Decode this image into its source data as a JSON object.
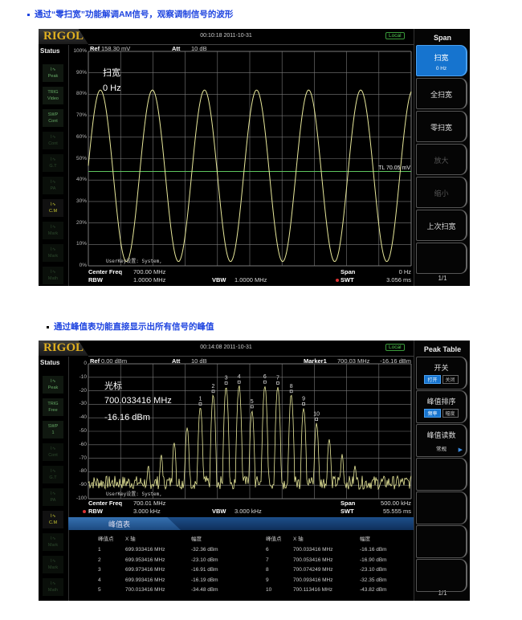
{
  "headings": [
    "通过“零扫宽”功能解调AM信号，观察调制信号的波形",
    "通过峰值表功能直接显示出所有信号的峰值"
  ],
  "colors": {
    "trace": "#e8e89a",
    "grid": "#7a7a7a",
    "threshold_line": "#5ec45e",
    "active_menu": "#1674cf",
    "heading": "#1f45e0"
  },
  "screen1": {
    "logo": "RIGOL",
    "time": "00:10:18 2011-10-31",
    "local": "Local",
    "status_title": "Status",
    "status_items": [
      [
        "",
        "Peak",
        "normal"
      ],
      [
        "TRIG",
        "Video",
        "normal"
      ],
      [
        "SWP",
        "Cont",
        "normal"
      ],
      [
        "",
        "Cont",
        "dim"
      ],
      [
        "",
        "G.T",
        "dim"
      ],
      [
        "",
        "PA",
        "dim"
      ],
      [
        "",
        "C.M",
        "bright"
      ],
      [
        "",
        "Mark",
        "dim"
      ],
      [
        "",
        "Mark",
        "dim"
      ],
      [
        "",
        "Math",
        "dim"
      ]
    ],
    "ref_label": "Ref",
    "ref_value": "158.30 mV",
    "att_label": "Att",
    "att_value": "10 dB",
    "y_ticks": [
      "100%",
      "90%",
      "80%",
      "70%",
      "60%",
      "50%",
      "40%",
      "30%",
      "20%",
      "10%",
      "0%"
    ],
    "overlay": [
      "扫宽",
      "0 Hz"
    ],
    "threshold_label": "TL 70.05 mV",
    "threshold_percent": 44,
    "userkey": "UserKey设置:   System,",
    "trace": {
      "type": "sine",
      "peak_percent": 82,
      "trough_percent": 2,
      "periods_shown": 6.2
    },
    "footer": {
      "center_freq_label": "Center Freq",
      "center_freq": "700.00 MHz",
      "span_label": "Span",
      "span": "0 Hz",
      "rbw_label": "RBW",
      "rbw": "1.0000 MHz",
      "vbw_label": "VBW",
      "vbw": "1.0000 MHz",
      "swt_label": "SWT",
      "swt": "3.056 ms"
    },
    "menu": {
      "title": "Span",
      "items": [
        {
          "label": "扫宽",
          "sub": "0 Hz",
          "state": "active"
        },
        {
          "label": "全扫宽",
          "state": "normal"
        },
        {
          "label": "零扫宽",
          "state": "normal"
        },
        {
          "label": "放大",
          "state": "disabled"
        },
        {
          "label": "缩小",
          "state": "disabled"
        },
        {
          "label": "上次扫宽",
          "state": "normal"
        },
        {
          "label": "",
          "state": "normal"
        }
      ],
      "page": "1/1"
    }
  },
  "screen2": {
    "logo": "RIGOL",
    "time": "00:14:08 2011-10-31",
    "local": "Local",
    "status_title": "Status",
    "status_items": [
      [
        "",
        "Peak",
        "normal"
      ],
      [
        "TRIG",
        "Free",
        "normal"
      ],
      [
        "SWP",
        "1",
        "normal"
      ],
      [
        "",
        "Cont",
        "dim"
      ],
      [
        "",
        "G.T",
        "dim"
      ],
      [
        "",
        "PA",
        "dim"
      ],
      [
        "",
        "C.M",
        "bright"
      ],
      [
        "",
        "Mark",
        "dim"
      ],
      [
        "",
        "Mark",
        "dim"
      ],
      [
        "",
        "Math",
        "dim"
      ]
    ],
    "ref_label": "Ref",
    "ref_value": "0.00 dBm",
    "att_label": "Att",
    "att_value": "10 dB",
    "marker_label": "Marker1",
    "marker_freq": "700.03 MHz",
    "marker_amp": "-16.16 dBm",
    "y_ticks": [
      "0",
      "-10",
      "-20",
      "-30",
      "-40",
      "-50",
      "-60",
      "-70",
      "-80",
      "-90",
      "-100"
    ],
    "overlay": [
      "光标",
      "700.033416 MHz",
      "-16.16 dBm"
    ],
    "userkey": "UserKey设置:   System,",
    "x_range_mhz": [
      699.76,
      700.26
    ],
    "footer": {
      "center_freq_label": "Center Freq",
      "center_freq": "700.01 MHz",
      "span_label": "Span",
      "span": "500.00 kHz",
      "rbw_label": "RBW",
      "rbw": "3.000 kHz",
      "vbw_label": "VBW",
      "vbw": "3.000 kHz",
      "swt_label": "SWT",
      "swt": "55.555 ms"
    },
    "peak_table": {
      "title": "峰值表",
      "headers": [
        "峰值点",
        "X 轴",
        "幅度"
      ],
      "rows": [
        [
          "1",
          "699.933416 MHz",
          "-32.36 dBm"
        ],
        [
          "2",
          "699.953416 MHz",
          "-23.10 dBm"
        ],
        [
          "3",
          "699.973416 MHz",
          "-16.91 dBm"
        ],
        [
          "4",
          "699.993416 MHz",
          "-16.19 dBm"
        ],
        [
          "5",
          "700.013416 MHz",
          "-34.48 dBm"
        ],
        [
          "6",
          "700.033416 MHz",
          "-16.16 dBm"
        ],
        [
          "7",
          "700.053416 MHz",
          "-16.90 dBm"
        ],
        [
          "8",
          "700.074249 MHz",
          "-23.10 dBm"
        ],
        [
          "9",
          "700.093416 MHz",
          "-32.35 dBm"
        ],
        [
          "10",
          "700.113416 MHz",
          "-43.82 dBm"
        ]
      ]
    },
    "menu": {
      "title": "Peak Table",
      "switch_label": "开关",
      "switch_options": [
        "打开",
        "关闭"
      ],
      "sort_label": "峰值排序",
      "sort_options": [
        "频率",
        "幅度"
      ],
      "readout_label": "峰值读数",
      "readout_value": "常规",
      "page": "1/1"
    }
  }
}
